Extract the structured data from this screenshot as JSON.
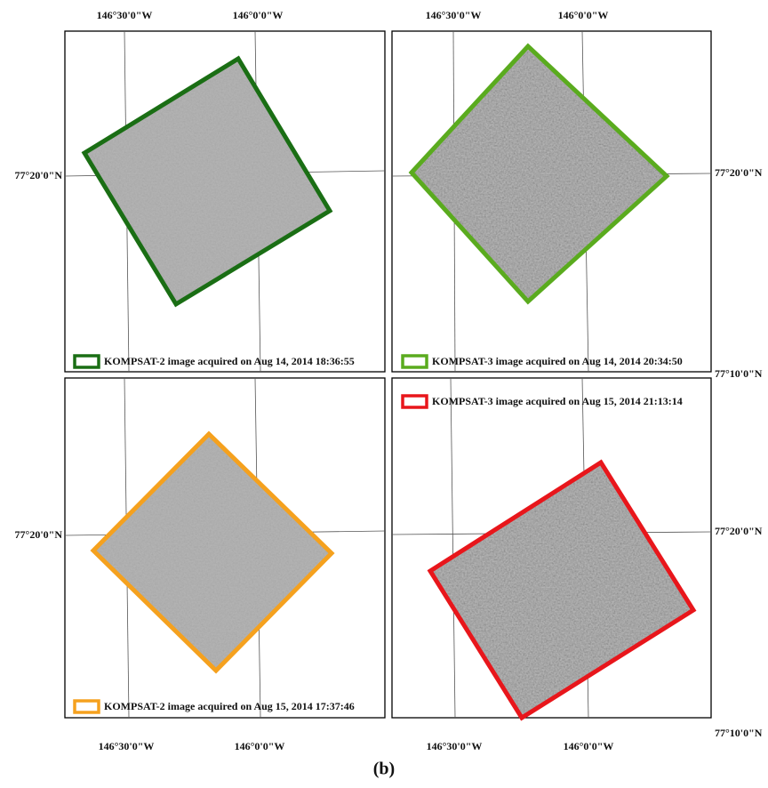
{
  "axis_labels": {
    "top": [
      "146°30'0\"W",
      "146°0'0\"W",
      "146°30'0\"W",
      "146°0'0\"W"
    ],
    "bottom": [
      "146°30'0\"W",
      "146°0'0\"W",
      "146°30'0\"W",
      "146°0'0\"W"
    ],
    "left": [
      "77°20'0\"N",
      "77°20'0\"N"
    ],
    "right": [
      "77°20'0\"N",
      "77°10'0\"N",
      "77°20'0\"N",
      "77°10'0\"N"
    ]
  },
  "panels": [
    {
      "legend": "KOMPSAT-2 image acquired on Aug 14, 2014 18:36:55"
    },
    {
      "legend": "KOMPSAT-3 image acquired on Aug 14, 2014 20:34:50"
    },
    {
      "legend": "KOMPSAT-2 image acquired on Aug 15, 2014 17:37:46"
    },
    {
      "legend": "KOMPSAT-3 image acquired on Aug 15, 2014 21:13:14"
    }
  ],
  "caption": "(b)"
}
